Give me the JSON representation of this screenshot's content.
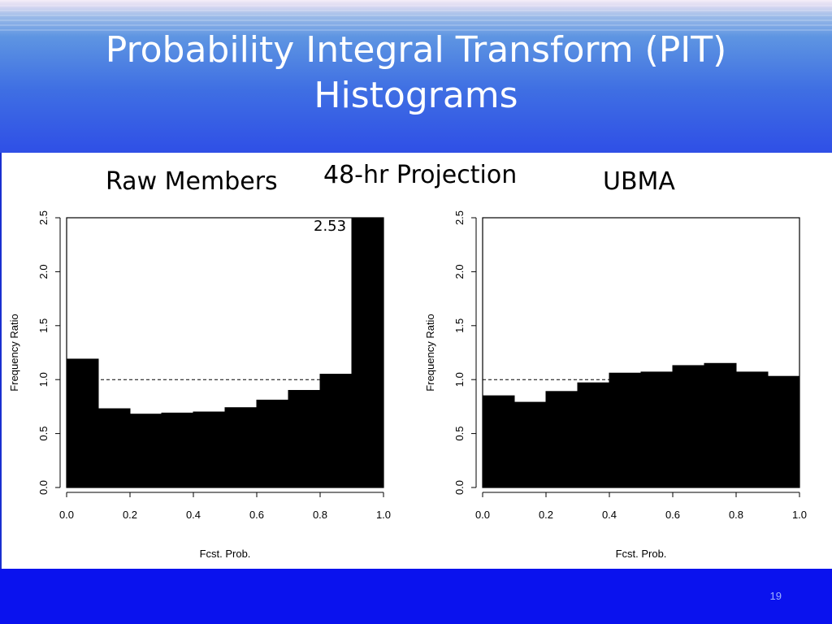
{
  "slide": {
    "title_line1": "Probability Integral Transform (PIT)",
    "title_line2": "Histograms",
    "subtitle": "48-hr Projection",
    "slide_number": "19"
  },
  "chart_data": [
    {
      "type": "bar",
      "title": "Raw Members",
      "xlabel": "Fcst. Prob.",
      "ylabel": "Frequency Ratio",
      "bin_edges": [
        0.0,
        0.1,
        0.2,
        0.3,
        0.4,
        0.5,
        0.6,
        0.7,
        0.8,
        0.9,
        1.0
      ],
      "values": [
        1.19,
        0.73,
        0.68,
        0.69,
        0.7,
        0.74,
        0.81,
        0.9,
        1.05,
        2.53
      ],
      "xlim": [
        0.0,
        1.0
      ],
      "ylim": [
        0.0,
        2.5
      ],
      "xticks": [
        "0.0",
        "0.2",
        "0.4",
        "0.6",
        "0.8",
        "1.0"
      ],
      "yticks": [
        "0.0",
        "0.5",
        "1.0",
        "1.5",
        "2.0",
        "2.5"
      ],
      "reference_line": 1.0,
      "annotation": "2.53",
      "grid": false
    },
    {
      "type": "bar",
      "title": "UBMA",
      "xlabel": "Fcst. Prob.",
      "ylabel": "Frequency Ratio",
      "bin_edges": [
        0.0,
        0.1,
        0.2,
        0.3,
        0.4,
        0.5,
        0.6,
        0.7,
        0.8,
        0.9,
        1.0
      ],
      "values": [
        0.85,
        0.79,
        0.89,
        0.97,
        1.06,
        1.07,
        1.13,
        1.15,
        1.07,
        1.03
      ],
      "xlim": [
        0.0,
        1.0
      ],
      "ylim": [
        0.0,
        2.5
      ],
      "xticks": [
        "0.0",
        "0.2",
        "0.4",
        "0.6",
        "0.8",
        "1.0"
      ],
      "yticks": [
        "0.0",
        "0.5",
        "1.0",
        "1.5",
        "2.0",
        "2.5"
      ],
      "reference_line": 1.0,
      "grid": false
    }
  ]
}
